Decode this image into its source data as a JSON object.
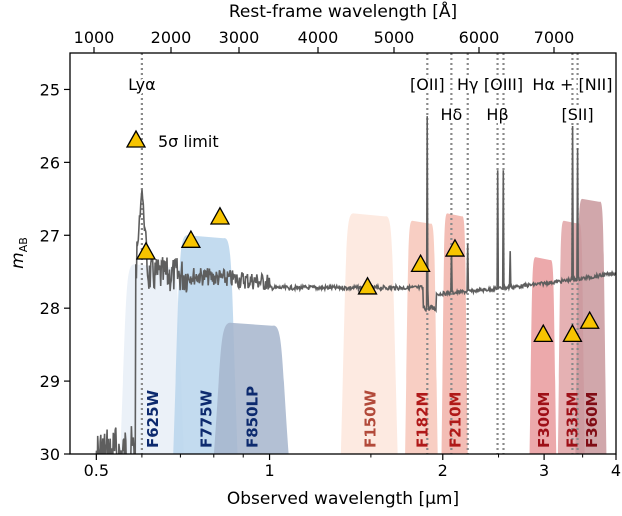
{
  "chart_data": {
    "type": "line",
    "xlabel": "Observed wavelength [μm]",
    "ylabel": "m",
    "ylabel_sub": "AB",
    "top_xlabel": "Rest-frame wavelength [Å]",
    "xlim": [
      0.45,
      4.0
    ],
    "ylim": [
      30,
      24.5
    ],
    "x_scale": "log",
    "x_ticks": [
      0.5,
      1,
      2,
      3,
      4
    ],
    "x_tick_labels": [
      "0.5",
      "1",
      "2",
      "3",
      "4"
    ],
    "y_ticks": [
      25,
      26,
      27,
      28,
      29,
      30
    ],
    "y_tick_labels": [
      "25",
      "26",
      "27",
      "28",
      "29",
      "30"
    ],
    "redshift_top_axis": {
      "ticks": [
        1000,
        2000,
        3000,
        4000,
        5000,
        6000,
        7000
      ],
      "tick_labels": [
        "1000",
        "2000",
        "3000",
        "4000",
        "5000",
        "6000",
        "7000"
      ]
    },
    "emission_lines": [
      {
        "label": "Lyα",
        "x": 0.6,
        "label_row": 1
      },
      {
        "label": "[OII]",
        "x": 1.88,
        "label_row": 1
      },
      {
        "label": "Hδ",
        "x": 2.07,
        "label_row": 2
      },
      {
        "label": "Hγ",
        "x": 2.21,
        "label_row": 1
      },
      {
        "label": "Hβ",
        "x": 2.49,
        "label_row": 2
      },
      {
        "label": "[OIII]",
        "x": 2.55,
        "label_row": 1
      },
      {
        "label": "Hα + [NII]",
        "x": 3.36,
        "label_row": 1
      },
      {
        "label": "[SII]",
        "x": 3.43,
        "label_row": 2
      }
    ],
    "filters": [
      {
        "name": "F625W",
        "color": "#e8eef7",
        "text_color": "#0d2a6e",
        "range": [
          0.55,
          0.71
        ],
        "peak": 27.4
      },
      {
        "name": "F775W",
        "color": "#b9d5ec",
        "text_color": "#0d2a6e",
        "range": [
          0.68,
          0.88
        ],
        "peak": 27.0
      },
      {
        "name": "F850LP",
        "color": "#a6b5cd",
        "text_color": "#0d2a6e",
        "range": [
          0.8,
          1.08
        ],
        "peak": 28.2
      },
      {
        "name": "F150W",
        "color": "#fde6dc",
        "text_color": "#b24a3a",
        "range": [
          1.33,
          1.67
        ],
        "peak": 26.7
      },
      {
        "name": "F182M",
        "color": "#f7c6b8",
        "text_color": "#b01818",
        "range": [
          1.72,
          1.96
        ],
        "peak": 26.8
      },
      {
        "name": "F210M",
        "color": "#f1b2a8",
        "text_color": "#b01818",
        "range": [
          1.99,
          2.21
        ],
        "peak": 26.7
      },
      {
        "name": "F300M",
        "color": "#e99a9c",
        "text_color": "#9e0f17",
        "range": [
          2.83,
          3.15
        ],
        "peak": 27.3
      },
      {
        "name": "F335M",
        "color": "#e0a3a6",
        "text_color": "#9e0f17",
        "range": [
          3.17,
          3.53
        ],
        "peak": 26.8
      },
      {
        "name": "F360M",
        "color": "#c9989c",
        "text_color": "#800b14",
        "range": [
          3.4,
          3.85
        ],
        "peak": 26.5
      }
    ],
    "limits": {
      "label": "5σ limit",
      "x": [
        0.61,
        0.73,
        0.82,
        1.48,
        1.83,
        2.1,
        2.99,
        3.36,
        3.6
      ],
      "y": [
        27.22,
        27.06,
        26.74,
        27.7,
        27.39,
        27.18,
        28.35,
        28.35,
        28.17
      ]
    },
    "colors": {
      "spectrum": "#5e5e5e",
      "marker_fill": "#f7c400",
      "marker_edge": "#000000",
      "line_marker": "#8a8a8a"
    }
  }
}
